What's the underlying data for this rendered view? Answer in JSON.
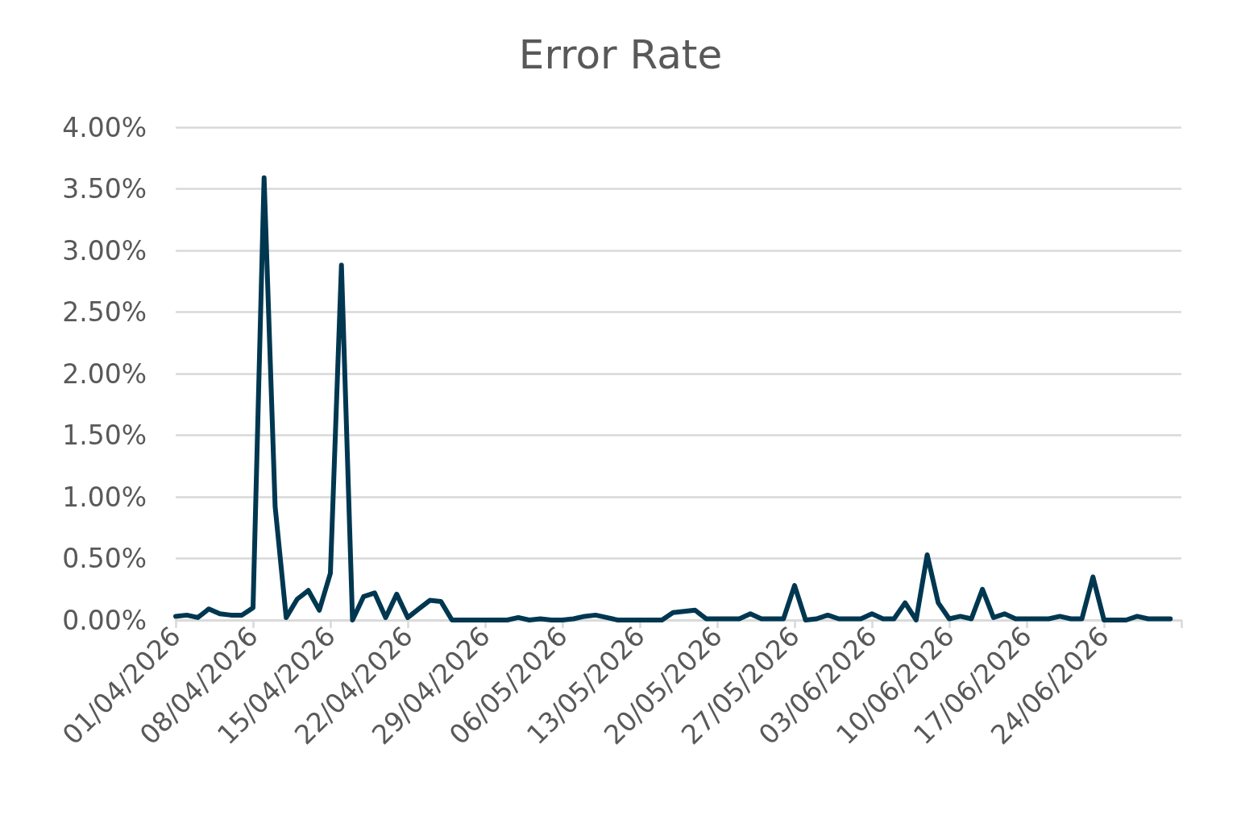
{
  "chart_data": {
    "type": "line",
    "title": "Error Rate",
    "x": [
      "2026-04-01",
      "2026-04-02",
      "2026-04-03",
      "2026-04-04",
      "2026-04-05",
      "2026-04-06",
      "2026-04-07",
      "2026-04-08",
      "2026-04-09",
      "2026-04-10",
      "2026-04-11",
      "2026-04-12",
      "2026-04-13",
      "2026-04-14",
      "2026-04-15",
      "2026-04-16",
      "2026-04-17",
      "2026-04-18",
      "2026-04-19",
      "2026-04-20",
      "2026-04-21",
      "2026-04-22",
      "2026-04-23",
      "2026-04-24",
      "2026-04-25",
      "2026-04-26",
      "2026-04-27",
      "2026-04-28",
      "2026-04-29",
      "2026-04-30",
      "2026-05-01",
      "2026-05-02",
      "2026-05-03",
      "2026-05-04",
      "2026-05-05",
      "2026-05-06",
      "2026-05-07",
      "2026-05-08",
      "2026-05-09",
      "2026-05-10",
      "2026-05-11",
      "2026-05-12",
      "2026-05-13",
      "2026-05-14",
      "2026-05-15",
      "2026-05-16",
      "2026-05-17",
      "2026-05-18",
      "2026-05-19",
      "2026-05-20",
      "2026-05-21",
      "2026-05-22",
      "2026-05-23",
      "2026-05-24",
      "2026-05-25",
      "2026-05-26",
      "2026-05-27",
      "2026-05-28",
      "2026-05-29",
      "2026-05-30",
      "2026-05-31",
      "2026-06-01",
      "2026-06-02",
      "2026-06-03",
      "2026-06-04",
      "2026-06-05",
      "2026-06-06",
      "2026-06-07",
      "2026-06-08",
      "2026-06-09",
      "2026-06-10",
      "2026-06-11",
      "2026-06-12",
      "2026-06-13",
      "2026-06-14",
      "2026-06-15",
      "2026-06-16",
      "2026-06-17",
      "2026-06-18",
      "2026-06-19",
      "2026-06-20",
      "2026-06-21",
      "2026-06-22",
      "2026-06-23",
      "2026-06-24",
      "2026-06-25",
      "2026-06-26",
      "2026-06-27",
      "2026-06-28",
      "2026-06-29",
      "2026-06-30"
    ],
    "values": [
      0.03,
      0.04,
      0.02,
      0.09,
      0.05,
      0.04,
      0.04,
      0.1,
      3.59,
      0.92,
      0.02,
      0.17,
      0.24,
      0.08,
      0.38,
      2.88,
      0,
      0.19,
      0.22,
      0.02,
      0.21,
      0.02,
      0.09,
      0.16,
      0.15,
      0,
      0,
      0,
      0,
      0,
      0,
      0.02,
      0,
      0.01,
      0,
      0,
      0.01,
      0.03,
      0.04,
      0.02,
      0,
      0,
      0,
      0,
      0,
      0.06,
      0.07,
      0.08,
      0.01,
      0.01,
      0.01,
      0.01,
      0.05,
      0.01,
      0.01,
      0.01,
      0.28,
      0,
      0.01,
      0.04,
      0.01,
      0.01,
      0.01,
      0.05,
      0.01,
      0.01,
      0.14,
      0,
      0.53,
      0.14,
      0.01,
      0.03,
      0.01,
      0.25,
      0.02,
      0.05,
      0.01,
      0.01,
      0.01,
      0.01,
      0.03,
      0.01,
      0.01,
      0.35,
      0,
      0,
      0,
      0.03,
      0.01,
      0.01,
      0.01
    ],
    "color": "#003750",
    "xlim": [
      "2026-04-01",
      "2026-07-01"
    ],
    "xticks": [
      {
        "value": "2026-04-01",
        "label": "01/04/2026"
      },
      {
        "value": "2026-04-08",
        "label": "08/04/2026"
      },
      {
        "value": "2026-04-15",
        "label": "15/04/2026"
      },
      {
        "value": "2026-04-22",
        "label": "22/04/2026"
      },
      {
        "value": "2026-04-29",
        "label": "29/04/2026"
      },
      {
        "value": "2026-05-06",
        "label": "06/05/2026"
      },
      {
        "value": "2026-05-13",
        "label": "13/05/2026"
      },
      {
        "value": "2026-05-20",
        "label": "20/05/2026"
      },
      {
        "value": "2026-05-27",
        "label": "27/05/2026"
      },
      {
        "value": "2026-06-03",
        "label": "03/06/2026"
      },
      {
        "value": "2026-06-10",
        "label": "10/06/2026"
      },
      {
        "value": "2026-06-17",
        "label": "17/06/2026"
      },
      {
        "value": "2026-06-24",
        "label": "24/06/2026"
      },
      {
        "value": "2026-07-01",
        "label": null
      }
    ],
    "ylim": [
      0,
      4
    ],
    "yticks": [
      {
        "value": 0,
        "label": "0.00%"
      },
      {
        "value": 0.5,
        "label": "0.50%"
      },
      {
        "value": 1,
        "label": "1.00%"
      },
      {
        "value": 1.5,
        "label": "1.50%"
      },
      {
        "value": 2,
        "label": "2.00%"
      },
      {
        "value": 2.5,
        "label": "2.50%"
      },
      {
        "value": 3,
        "label": "3.00%"
      },
      {
        "value": 3.5,
        "label": "3.50%"
      },
      {
        "value": 4,
        "label": "4.00%"
      }
    ],
    "grid": "y",
    "marker": "none",
    "line_style": "solid"
  }
}
